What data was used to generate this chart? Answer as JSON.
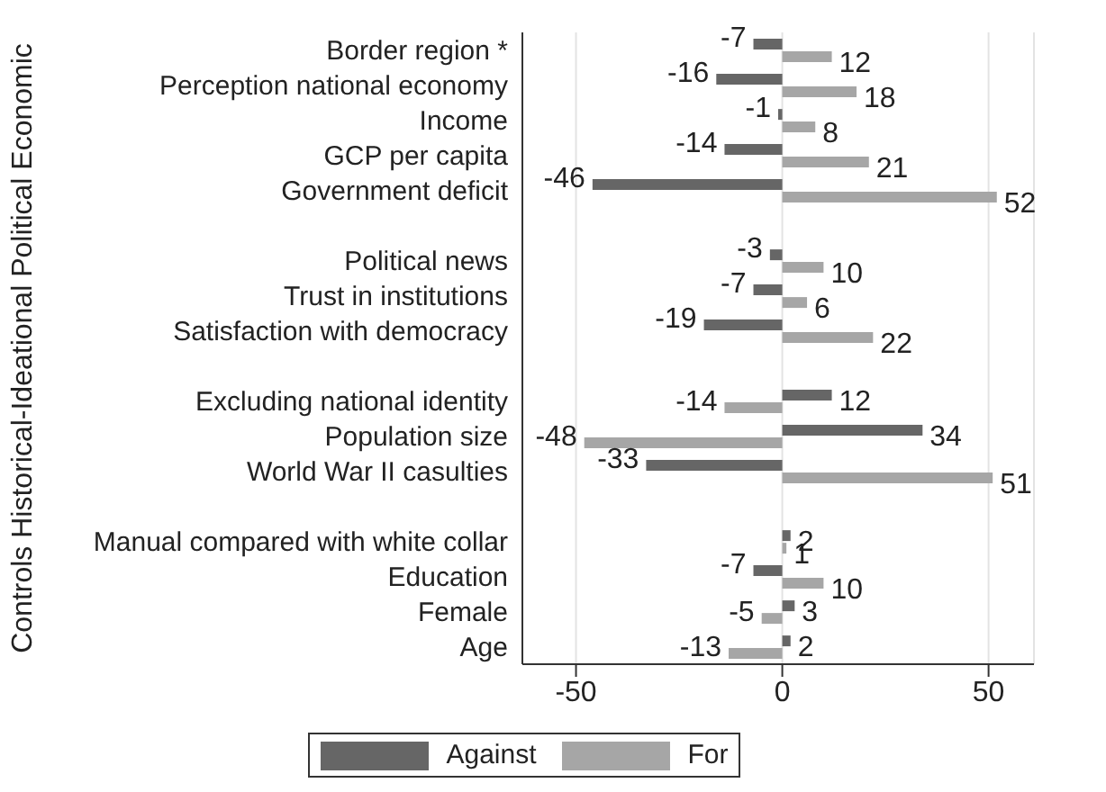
{
  "chart_data": {
    "type": "bar",
    "orientation": "horizontal",
    "ylabel": "Controls Historical-Ideational Political Economic",
    "categories": [
      "Border region *",
      "Perception national economy",
      "Income",
      "GCP per capita",
      "Government deficit",
      null,
      "Political news",
      "Trust in institutions",
      "Satisfaction with democracy",
      null,
      "Excluding national identity",
      "Population size",
      "World War II casulties",
      null,
      "Manual compared with white collar",
      "Education",
      "Female",
      "Age"
    ],
    "series": [
      {
        "name": "Against",
        "color": "#666666",
        "values": [
          -7,
          -16,
          -1,
          -14,
          -46,
          null,
          -3,
          -7,
          -19,
          null,
          12,
          34,
          -33,
          null,
          2,
          -7,
          3,
          2
        ]
      },
      {
        "name": "For",
        "color": "#a6a6a6",
        "values": [
          12,
          18,
          8,
          21,
          52,
          null,
          10,
          6,
          22,
          null,
          -14,
          -48,
          51,
          null,
          1,
          10,
          -5,
          -13
        ]
      }
    ],
    "xlim": [
      -63,
      61
    ],
    "xticks": [
      -50,
      0,
      50
    ],
    "grid": "x",
    "legend": "bottom",
    "data_labels": true
  }
}
